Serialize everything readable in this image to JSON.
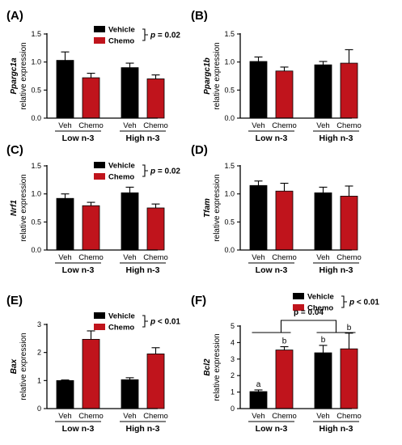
{
  "colors": {
    "vehicle": "#000000",
    "chemo": "#c0141c"
  },
  "chart_data": [
    {
      "type": "bar",
      "panel": "(A)",
      "ylabel_gene": "Ppargc1a",
      "ylabel": "relative expression",
      "ylim": [
        0,
        1.5
      ],
      "yticks": [
        "0.0",
        "0.5",
        "1.0",
        "1.5"
      ],
      "groups": [
        "Low n-3",
        "High n-3"
      ],
      "categories": [
        "Veh",
        "Chemo"
      ],
      "series": [
        {
          "name": "Vehicle",
          "values": [
            1.03,
            0.9
          ],
          "errors": [
            0.15,
            0.08
          ]
        },
        {
          "name": "Chemo",
          "values": [
            0.72,
            0.7
          ],
          "errors": [
            0.08,
            0.07
          ]
        }
      ],
      "legend": {
        "items": [
          "Vehicle",
          "Chemo"
        ],
        "p": "= 0.02"
      },
      "letters": []
    },
    {
      "type": "bar",
      "panel": "(B)",
      "ylabel_gene": "Ppargc1b",
      "ylabel": "relative expression",
      "ylim": [
        0,
        1.5
      ],
      "yticks": [
        "0.0",
        "0.5",
        "1.0",
        "1.5"
      ],
      "groups": [
        "Low n-3",
        "High n-3"
      ],
      "categories": [
        "Veh",
        "Chemo"
      ],
      "series": [
        {
          "name": "Vehicle",
          "values": [
            1.01,
            0.95
          ],
          "errors": [
            0.08,
            0.06
          ]
        },
        {
          "name": "Chemo",
          "values": [
            0.84,
            0.98
          ],
          "errors": [
            0.07,
            0.24
          ]
        }
      ],
      "legend": null,
      "letters": []
    },
    {
      "type": "bar",
      "panel": "(C)",
      "ylabel_gene": "Nrf1",
      "ylabel": "relative expression",
      "ylim": [
        0,
        1.5
      ],
      "yticks": [
        "0.0",
        "0.5",
        "1.0",
        "1.5"
      ],
      "groups": [
        "Low n-3",
        "High n-3"
      ],
      "categories": [
        "Veh",
        "Chemo"
      ],
      "series": [
        {
          "name": "Vehicle",
          "values": [
            0.92,
            1.02
          ],
          "errors": [
            0.08,
            0.1
          ]
        },
        {
          "name": "Chemo",
          "values": [
            0.79,
            0.75
          ],
          "errors": [
            0.06,
            0.07
          ]
        }
      ],
      "legend": {
        "items": [
          "Vehicle",
          "Chemo"
        ],
        "p": "= 0.02"
      },
      "letters": []
    },
    {
      "type": "bar",
      "panel": "(D)",
      "ylabel_gene": "Tfam",
      "ylabel": "relative expression",
      "ylim": [
        0,
        1.5
      ],
      "yticks": [
        "0.0",
        "0.5",
        "1.0",
        "1.5"
      ],
      "groups": [
        "Low n-3",
        "High n-3"
      ],
      "categories": [
        "Veh",
        "Chemo"
      ],
      "series": [
        {
          "name": "Vehicle",
          "values": [
            1.15,
            1.02
          ],
          "errors": [
            0.08,
            0.1
          ]
        },
        {
          "name": "Chemo",
          "values": [
            1.05,
            0.96
          ],
          "errors": [
            0.14,
            0.18
          ]
        }
      ],
      "legend": null,
      "letters": []
    },
    {
      "type": "bar",
      "panel": "(E)",
      "ylabel_gene": "Bax",
      "ylabel": "relative expression",
      "ylim": [
        0,
        3
      ],
      "yticks": [
        "0",
        "1",
        "2",
        "3"
      ],
      "groups": [
        "Low n-3",
        "High n-3"
      ],
      "categories": [
        "Veh",
        "Chemo"
      ],
      "series": [
        {
          "name": "Vehicle",
          "values": [
            1.0,
            1.03
          ],
          "errors": [
            0.02,
            0.07
          ]
        },
        {
          "name": "Chemo",
          "values": [
            2.47,
            1.95
          ],
          "errors": [
            0.3,
            0.22
          ]
        }
      ],
      "legend": {
        "items": [
          "Vehicle",
          "Chemo"
        ],
        "p": "< 0.01"
      },
      "letters": []
    },
    {
      "type": "bar",
      "panel": "(F)",
      "ylabel_gene": "Bcl2",
      "ylabel": "relative expression",
      "ylim": [
        0,
        5
      ],
      "yticks": [
        "0",
        "1",
        "2",
        "3",
        "4",
        "5"
      ],
      "groups": [
        "Low n-3",
        "High n-3"
      ],
      "categories": [
        "Veh",
        "Chemo"
      ],
      "series": [
        {
          "name": "Vehicle",
          "values": [
            1.03,
            3.38
          ],
          "errors": [
            0.1,
            0.45
          ]
        },
        {
          "name": "Chemo",
          "values": [
            3.55,
            3.62
          ],
          "errors": [
            0.2,
            0.95
          ]
        }
      ],
      "legend": {
        "items": [
          "Vehicle",
          "Chemo"
        ],
        "p": "< 0.01"
      },
      "letters": [
        "a",
        "b",
        "b",
        "b"
      ],
      "bracket_p": "p = 0.04"
    }
  ]
}
